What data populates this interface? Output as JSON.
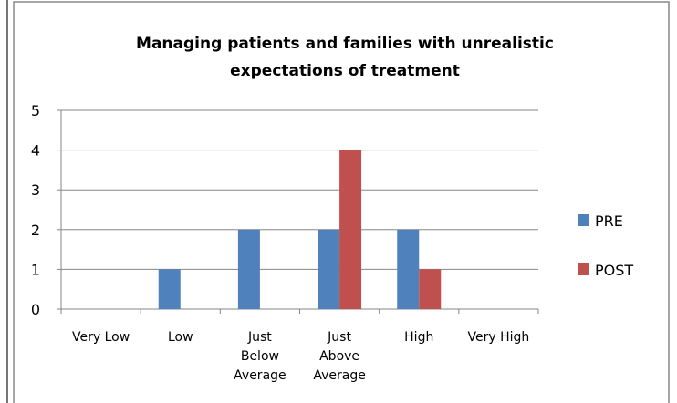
{
  "chart_data": {
    "type": "bar",
    "title": "Managing patients and families with unrealistic\nexpectations of treatment",
    "categories": [
      "Very Low",
      "Low",
      "Just\nBelow\nAverage",
      "Just\nAbove\nAverage",
      "High",
      "Very High"
    ],
    "series": [
      {
        "name": "PRE",
        "color": "#4f81bd",
        "values": [
          0,
          1,
          2,
          2,
          2,
          0
        ]
      },
      {
        "name": "POST",
        "color": "#c0504d",
        "values": [
          0,
          0,
          0,
          4,
          1,
          0
        ]
      }
    ],
    "ylim": [
      0,
      5
    ],
    "yticks": [
      0,
      1,
      2,
      3,
      4,
      5
    ],
    "grid": true,
    "legend": "right"
  }
}
